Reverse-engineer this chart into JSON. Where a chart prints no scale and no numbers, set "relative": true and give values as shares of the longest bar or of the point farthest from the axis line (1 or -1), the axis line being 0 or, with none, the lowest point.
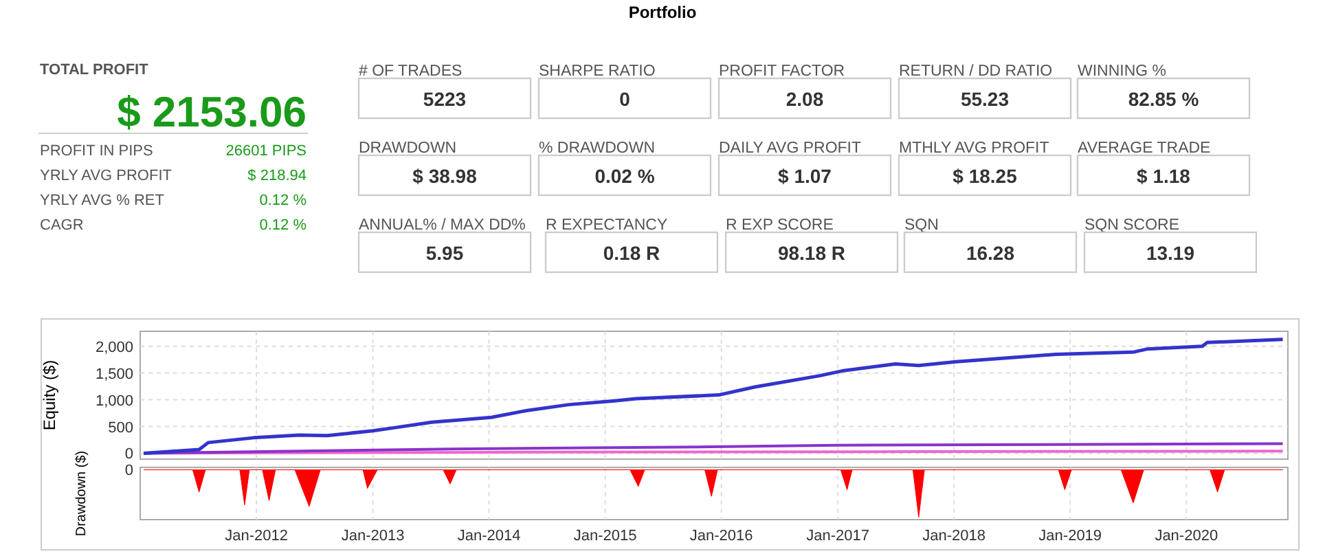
{
  "chart_data": [
    {
      "type": "other",
      "title": "Portfolio",
      "annotations": [
        "TOTAL PROFIT",
        "$ 2153.06",
        "PROFIT IN PIPS",
        "26601 PIPS",
        "YRLY AVG PROFIT",
        "$ 218.94",
        "YRLY AVG % RET",
        "0.12 %",
        "CAGR",
        "0.12 %",
        "# OF TRADES",
        "5223",
        "SHARPE RATIO",
        "0",
        "PROFIT FACTOR",
        "2.08",
        "RETURN / DD RATIO",
        "55.23",
        "WINNING %",
        "82.85 %",
        "DRAWDOWN",
        "$ 38.98",
        "% DRAWDOWN",
        "0.02 %",
        "DAILY AVG PROFIT",
        "$ 1.07",
        "MTHLY AVG PROFIT",
        "$ 18.25",
        "AVERAGE TRADE",
        "$ 1.18",
        "ANNUAL% / MAX DD%",
        "5.95",
        "R EXPECTANCY",
        "0.18 R",
        "R EXP SCORE",
        "98.18 R",
        "SQN",
        "16.28",
        "SQN SCORE",
        "13.19"
      ]
    },
    {
      "type": "line",
      "ylabel": "Equity ($)",
      "xlim": [
        "2011-01-01",
        "2020-11-15"
      ],
      "xticks": [
        {
          "value": "2012-01-01",
          "label": null
        },
        {
          "value": "2013-01-01",
          "label": null
        },
        {
          "value": "2014-01-01",
          "label": null
        },
        {
          "value": "2015-01-01",
          "label": null
        },
        {
          "value": "2016-01-01",
          "label": null
        },
        {
          "value": "2017-01-01",
          "label": null
        },
        {
          "value": "2018-01-01",
          "label": null
        },
        {
          "value": "2019-01-01",
          "label": null
        },
        {
          "value": "2020-01-01",
          "label": null
        }
      ],
      "ylim": [
        -110,
        2280
      ],
      "yticks": [
        0,
        500,
        {
          "value": 1000,
          "label": "1,000"
        },
        {
          "value": 1500,
          "label": "1,500"
        },
        {
          "value": 2000,
          "label": "2,000"
        }
      ],
      "grid": true,
      "tick_labels": "y",
      "series": [
        {
          "color": "#3333cc",
          "x": [
            "2011-01-12",
            "2011-07-05",
            "2011-08-03",
            "2011-12-24",
            "2012-05-15",
            "2012-08-10",
            "2013-01-01",
            "2013-03-01",
            "2013-07-05",
            "2014-01-08",
            "2014-05-01",
            "2014-09-10",
            "2015-01-30",
            "2015-04-08",
            "2015-12-24",
            "2016-04-15",
            "2016-11-05",
            "2017-01-15",
            "2017-07-01",
            "2017-09-12",
            "2018-01-08",
            "2018-11-17",
            "2019-07-18",
            "2019-09-01",
            "2020-02-20",
            "2020-03-06",
            "2020-10-30"
          ],
          "values": [
            0,
            70,
            200,
            290,
            340,
            330,
            420,
            470,
            580,
            670,
            800,
            910,
            980,
            1020,
            1090,
            1240,
            1450,
            1540,
            1670,
            1640,
            1710,
            1850,
            1890,
            1950,
            2000,
            2070,
            2130
          ]
        },
        {
          "color": "#8833cc",
          "x": [
            "2011-01-12",
            "2013-09-01",
            "2015-12-01",
            "2017-01-01",
            "2020-10-30"
          ],
          "values": [
            0,
            80,
            120,
            150,
            180
          ]
        },
        {
          "color": "#ee66cc",
          "x": [
            "2011-01-12",
            "2014-01-01",
            "2017-09-01",
            "2020-10-30"
          ],
          "values": [
            0,
            20,
            30,
            40
          ]
        }
      ]
    },
    {
      "type": "area",
      "relative": true,
      "ylabel": "Drawdown ($)",
      "annotations": [
        "0"
      ],
      "color": "#ff0000",
      "grid": "x",
      "xlim": [
        "2011-01-01",
        "2020-11-15"
      ],
      "xticks": [
        {
          "value": "2012-01-01",
          "label": "Jan-2012"
        },
        {
          "value": "2013-01-01",
          "label": "Jan-2013"
        },
        {
          "value": "2014-01-01",
          "label": "Jan-2014"
        },
        {
          "value": "2015-01-01",
          "label": "Jan-2015"
        },
        {
          "value": "2016-01-01",
          "label": "Jan-2016"
        },
        {
          "value": "2017-01-01",
          "label": "Jan-2017"
        },
        {
          "value": "2018-01-01",
          "label": "Jan-2018"
        },
        {
          "value": "2019-01-01",
          "label": "Jan-2019"
        },
        {
          "value": "2020-01-01",
          "label": "Jan-2020"
        }
      ],
      "x": [
        "2011-01-12",
        "2011-06-15",
        "2011-07-05",
        "2011-07-25",
        "2011-11-10",
        "2011-11-25",
        "2011-12-10",
        "2012-01-20",
        "2012-02-10",
        "2012-03-01",
        "2012-05-01",
        "2012-06-15",
        "2012-07-20",
        "2012-12-01",
        "2012-12-15",
        "2013-01-15",
        "2013-08-10",
        "2013-09-01",
        "2013-09-20",
        "2015-03-20",
        "2015-04-15",
        "2015-05-05",
        "2015-11-10",
        "2015-12-01",
        "2015-12-20",
        "2017-01-10",
        "2017-01-30",
        "2017-02-15",
        "2017-08-25",
        "2017-09-12",
        "2017-09-30",
        "2018-11-25",
        "2018-12-15",
        "2019-01-05",
        "2019-06-10",
        "2019-07-18",
        "2019-08-20",
        "2020-03-15",
        "2020-04-08",
        "2020-04-30",
        "2020-10-30"
      ],
      "values": [
        0,
        0,
        -0.47,
        0,
        0,
        -0.74,
        0,
        0,
        -0.65,
        0,
        0,
        -0.77,
        0,
        0,
        -0.39,
        0,
        0,
        -0.3,
        0,
        0,
        -0.35,
        0,
        0,
        -0.56,
        0,
        0,
        -0.42,
        0,
        0,
        -1,
        0,
        0,
        -0.42,
        0,
        0,
        -0.7,
        0,
        0,
        -0.47,
        0,
        0
      ]
    }
  ]
}
